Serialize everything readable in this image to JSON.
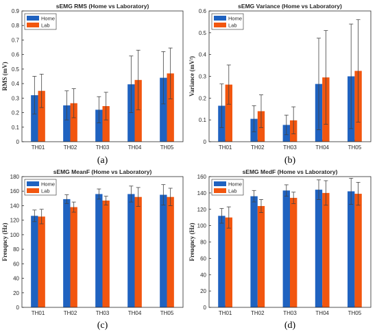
{
  "colors": {
    "home": "#1f62c0",
    "lab": "#f2560f",
    "axis": "#262626"
  },
  "chart_data": [
    {
      "type": "bar",
      "caption": "(a)",
      "title": "sEMG RMS (Home vs Laboratory)",
      "xlabel": "",
      "ylabel": "RMS (mV)",
      "ylim": [
        0,
        0.9
      ],
      "yticks": [
        "0",
        "0.1",
        "0.2",
        "0.3",
        "0.4",
        "0.5",
        "0.6",
        "0.7",
        "0.8",
        "0.9"
      ],
      "ytick_values": [
        0,
        0.1,
        0.2,
        0.3,
        0.4,
        0.5,
        0.6,
        0.7,
        0.8,
        0.9
      ],
      "legend_position": "top-left",
      "categories": [
        "TH01",
        "TH02",
        "TH03",
        "TH04",
        "TH05"
      ],
      "series": [
        {
          "name": "Home",
          "values": [
            0.32,
            0.25,
            0.22,
            0.395,
            0.44
          ],
          "errors": [
            0.13,
            0.1,
            0.09,
            0.195,
            0.18
          ]
        },
        {
          "name": "Lab",
          "values": [
            0.35,
            0.265,
            0.245,
            0.425,
            0.47
          ],
          "errors": [
            0.115,
            0.1,
            0.095,
            0.205,
            0.175
          ]
        }
      ]
    },
    {
      "type": "bar",
      "caption": "(b)",
      "title": "sEMG Variance (Home vs Laboratory)",
      "xlabel": "",
      "ylabel": "Variance (mV²)",
      "ylim": [
        0,
        0.6
      ],
      "yticks": [
        "0",
        "0.1",
        "0.2",
        "0.3",
        "0.4",
        "0.5",
        "0.6"
      ],
      "ytick_values": [
        0,
        0.1,
        0.2,
        0.3,
        0.4,
        0.5,
        0.6
      ],
      "legend_position": "top-left",
      "categories": [
        "TH01",
        "TH02",
        "TH03",
        "TH04",
        "TH05"
      ],
      "series": [
        {
          "name": "Home",
          "values": [
            0.165,
            0.105,
            0.077,
            0.265,
            0.3
          ],
          "errors": [
            0.1,
            0.06,
            0.045,
            0.21,
            0.24
          ]
        },
        {
          "name": "Lab",
          "values": [
            0.262,
            0.14,
            0.098,
            0.295,
            0.325
          ],
          "errors": [
            0.09,
            0.075,
            0.062,
            0.215,
            0.235
          ]
        }
      ]
    },
    {
      "type": "bar",
      "caption": "(c)",
      "title": "sEMG MeanF (Home vs Laboratory)",
      "xlabel": "",
      "ylabel": "Freuqncy (Hz)",
      "ylim": [
        0,
        180
      ],
      "yticks": [
        "0",
        "20",
        "40",
        "60",
        "80",
        "100",
        "120",
        "140",
        "160",
        "180"
      ],
      "ytick_values": [
        0,
        20,
        40,
        60,
        80,
        100,
        120,
        140,
        160,
        180
      ],
      "legend_position": "top-left",
      "categories": [
        "TH01",
        "TH02",
        "TH03",
        "TH04",
        "TH05"
      ],
      "series": [
        {
          "name": "Home",
          "values": [
            126,
            149,
            156,
            156,
            155
          ],
          "errors": [
            8,
            6,
            7,
            11,
            14
          ]
        },
        {
          "name": "Lab",
          "values": [
            125,
            138,
            147,
            152,
            152
          ],
          "errors": [
            10,
            7,
            6,
            13,
            12
          ]
        }
      ]
    },
    {
      "type": "bar",
      "caption": "(d)",
      "title": "sEMG MedF (Home vs Laboratory)",
      "xlabel": "",
      "ylabel": "Freuqncy (Hz)",
      "ylim": [
        0,
        160
      ],
      "yticks": [
        "0",
        "20",
        "40",
        "60",
        "80",
        "100",
        "120",
        "140",
        "160"
      ],
      "ytick_values": [
        0,
        20,
        40,
        60,
        80,
        100,
        120,
        140,
        160
      ],
      "legend_position": "top-left",
      "categories": [
        "TH01",
        "TH02",
        "TH03",
        "TH04",
        "TH05"
      ],
      "series": [
        {
          "name": "Home",
          "values": [
            112,
            136,
            143,
            144,
            142
          ],
          "errors": [
            9,
            7,
            7,
            12,
            16
          ]
        },
        {
          "name": "Lab",
          "values": [
            110,
            124,
            134,
            140,
            139
          ],
          "errors": [
            13,
            8,
            7,
            15,
            14
          ]
        }
      ]
    }
  ]
}
